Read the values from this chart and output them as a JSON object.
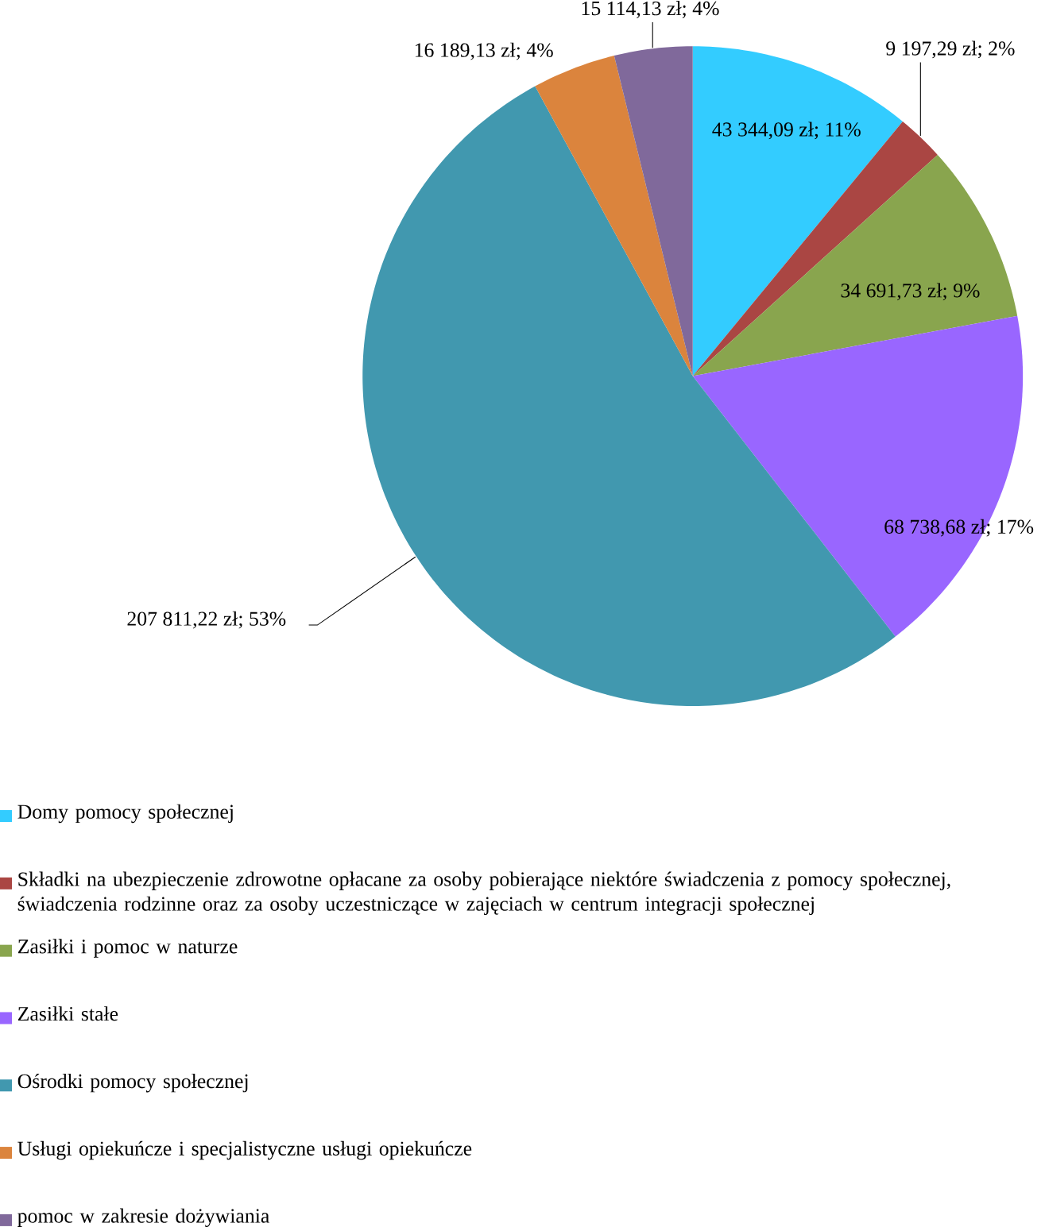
{
  "chart_data": {
    "type": "pie",
    "categories": [
      "Domy pomocy społecznej",
      "Składki na ubezpieczenie zdrowotne opłacane za osoby pobierające niektóre świadczenia z pomocy społecznej, świadczenia rodzinne oraz za osoby uczestniczące w zajęciach w centrum integracji społecznej",
      "Zasiłki i pomoc w naturze",
      "Zasiłki stałe",
      "Ośrodki pomocy społecznej",
      "Usługi opiekuńcze i specjalistyczne usługi opiekuńcze",
      "pomoc w zakresie dożywiania"
    ],
    "values": [
      43344.09,
      9197.29,
      34691.73,
      68738.68,
      207811.22,
      16189.13,
      15114.13
    ],
    "value_labels": [
      "43 344,09 zł; 11%",
      "9 197,29 zł; 2%",
      "34 691,73 zł; 9%",
      "68 738,68 zł; 17%",
      "207 811,22 zł; 53%",
      "16 189,13 zł; 4%",
      "15 114,13 zł; 4%"
    ],
    "colors": [
      "#33ccff",
      "#aa4643",
      "#89a54e",
      "#9966ff",
      "#4198af",
      "#db843d",
      "#80699b"
    ],
    "legend": "bottom"
  }
}
